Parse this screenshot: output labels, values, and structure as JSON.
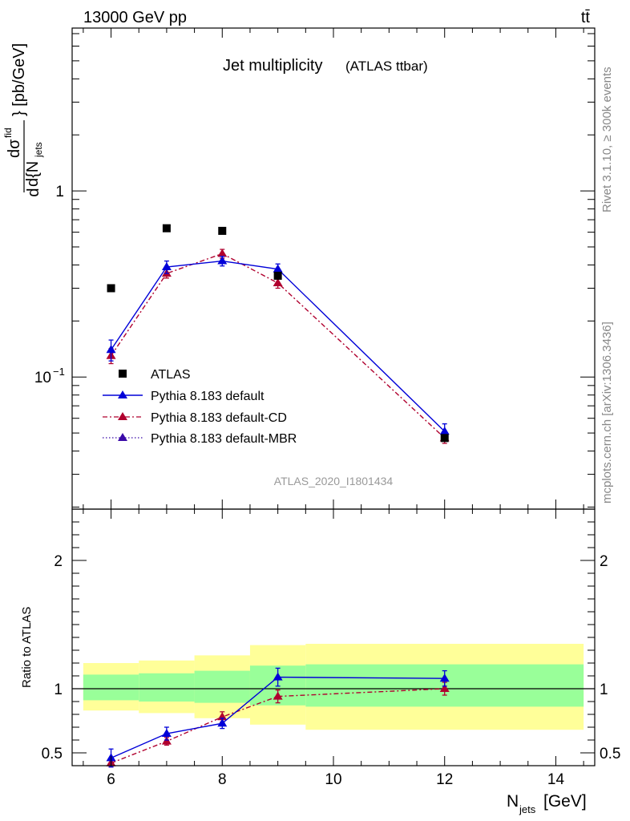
{
  "header": {
    "energy_label": "13000 GeV pp",
    "process_label": "tt̄",
    "side_label_rivet": "Rivet 3.1.10, ≥ 300k events",
    "side_label_site": "mcplots.cern.ch [arXiv:1306.3436]"
  },
  "chart_data": [
    {
      "type": "scatter",
      "panel": "main",
      "title": "Jet multiplicity",
      "subtitle": "(ATLAS ttbar)",
      "analysis_label": "ATLAS_2020_I1801434",
      "ylabel": "dσ^fid / d{N_jets} [pb/GeV]",
      "yscale": "log",
      "xlim": [
        5.3,
        14.7
      ],
      "ylim": [
        0.0195,
        7.5
      ],
      "x_ticks": [
        6,
        8,
        10,
        12,
        14
      ],
      "y_tick_labels": [
        {
          "value": 1,
          "label": "1"
        },
        {
          "value": 0.1,
          "label": "10",
          "exponent": "−1"
        }
      ],
      "legend_position": "lower-left",
      "series": [
        {
          "name": "ATLAS",
          "marker": "square",
          "color": "#000000",
          "style": "none",
          "x": [
            6,
            7,
            8,
            9,
            12
          ],
          "y": [
            0.3,
            0.63,
            0.61,
            0.35,
            0.047
          ]
        },
        {
          "name": "Pythia 8.183 default",
          "marker": "triangle",
          "color": "#0000d8",
          "style": "solid",
          "x": [
            6,
            7,
            8,
            9,
            12
          ],
          "y": [
            0.14,
            0.39,
            0.42,
            0.38,
            0.051
          ],
          "err": [
            0.018,
            0.03,
            0.025,
            0.025,
            0.005
          ]
        },
        {
          "name": "Pythia 8.183 default-CD",
          "marker": "triangle",
          "color": "#b0002e",
          "style": "dashdot",
          "x": [
            6,
            7,
            8,
            9,
            12
          ],
          "y": [
            0.13,
            0.36,
            0.46,
            0.32,
            0.047
          ],
          "err": [
            0.012,
            0.02,
            0.025,
            0.02,
            0.003
          ]
        },
        {
          "name": "Pythia 8.183 default-MBR",
          "marker": "triangle",
          "color": "#3a0aa8",
          "style": "dotted",
          "x": [],
          "y": []
        }
      ]
    },
    {
      "type": "line",
      "panel": "ratio",
      "xlabel": "N_jets [GeV]",
      "ylabel": "Ratio to ATLAS",
      "xlim": [
        5.3,
        14.7
      ],
      "ylim": [
        0.4,
        2.4
      ],
      "x_ticks": [
        6,
        8,
        10,
        12,
        14
      ],
      "y_ticks": [
        0.5,
        1,
        2
      ],
      "uncertainty_bands": [
        {
          "x_from": 5.5,
          "x_to": 6.5,
          "yellow": [
            0.83,
            1.2
          ],
          "green": [
            0.91,
            1.11
          ]
        },
        {
          "x_from": 6.5,
          "x_to": 7.5,
          "yellow": [
            0.81,
            1.22
          ],
          "green": [
            0.9,
            1.12
          ]
        },
        {
          "x_from": 7.5,
          "x_to": 8.5,
          "yellow": [
            0.77,
            1.26
          ],
          "green": [
            0.89,
            1.14
          ]
        },
        {
          "x_from": 8.5,
          "x_to": 9.5,
          "yellow": [
            0.72,
            1.34
          ],
          "green": [
            0.87,
            1.18
          ]
        },
        {
          "x_from": 9.5,
          "x_to": 14.5,
          "yellow": [
            0.68,
            1.35
          ],
          "green": [
            0.86,
            1.19
          ]
        }
      ],
      "reference_line": 1,
      "series": [
        {
          "name": "Pythia 8.183 default",
          "color": "#0000d8",
          "style": "solid",
          "x": [
            6,
            7,
            8,
            9,
            12
          ],
          "y": [
            0.46,
            0.65,
            0.73,
            1.09,
            1.08
          ],
          "err": [
            0.07,
            0.05,
            0.04,
            0.07,
            0.06
          ]
        },
        {
          "name": "Pythia 8.183 default-CD",
          "color": "#b0002e",
          "style": "dashdot",
          "x": [
            6,
            7,
            8,
            9,
            12
          ],
          "y": [
            0.42,
            0.59,
            0.78,
            0.94,
            1.0
          ],
          "err": [
            0.03,
            0.03,
            0.04,
            0.05,
            0.05
          ]
        }
      ]
    }
  ]
}
